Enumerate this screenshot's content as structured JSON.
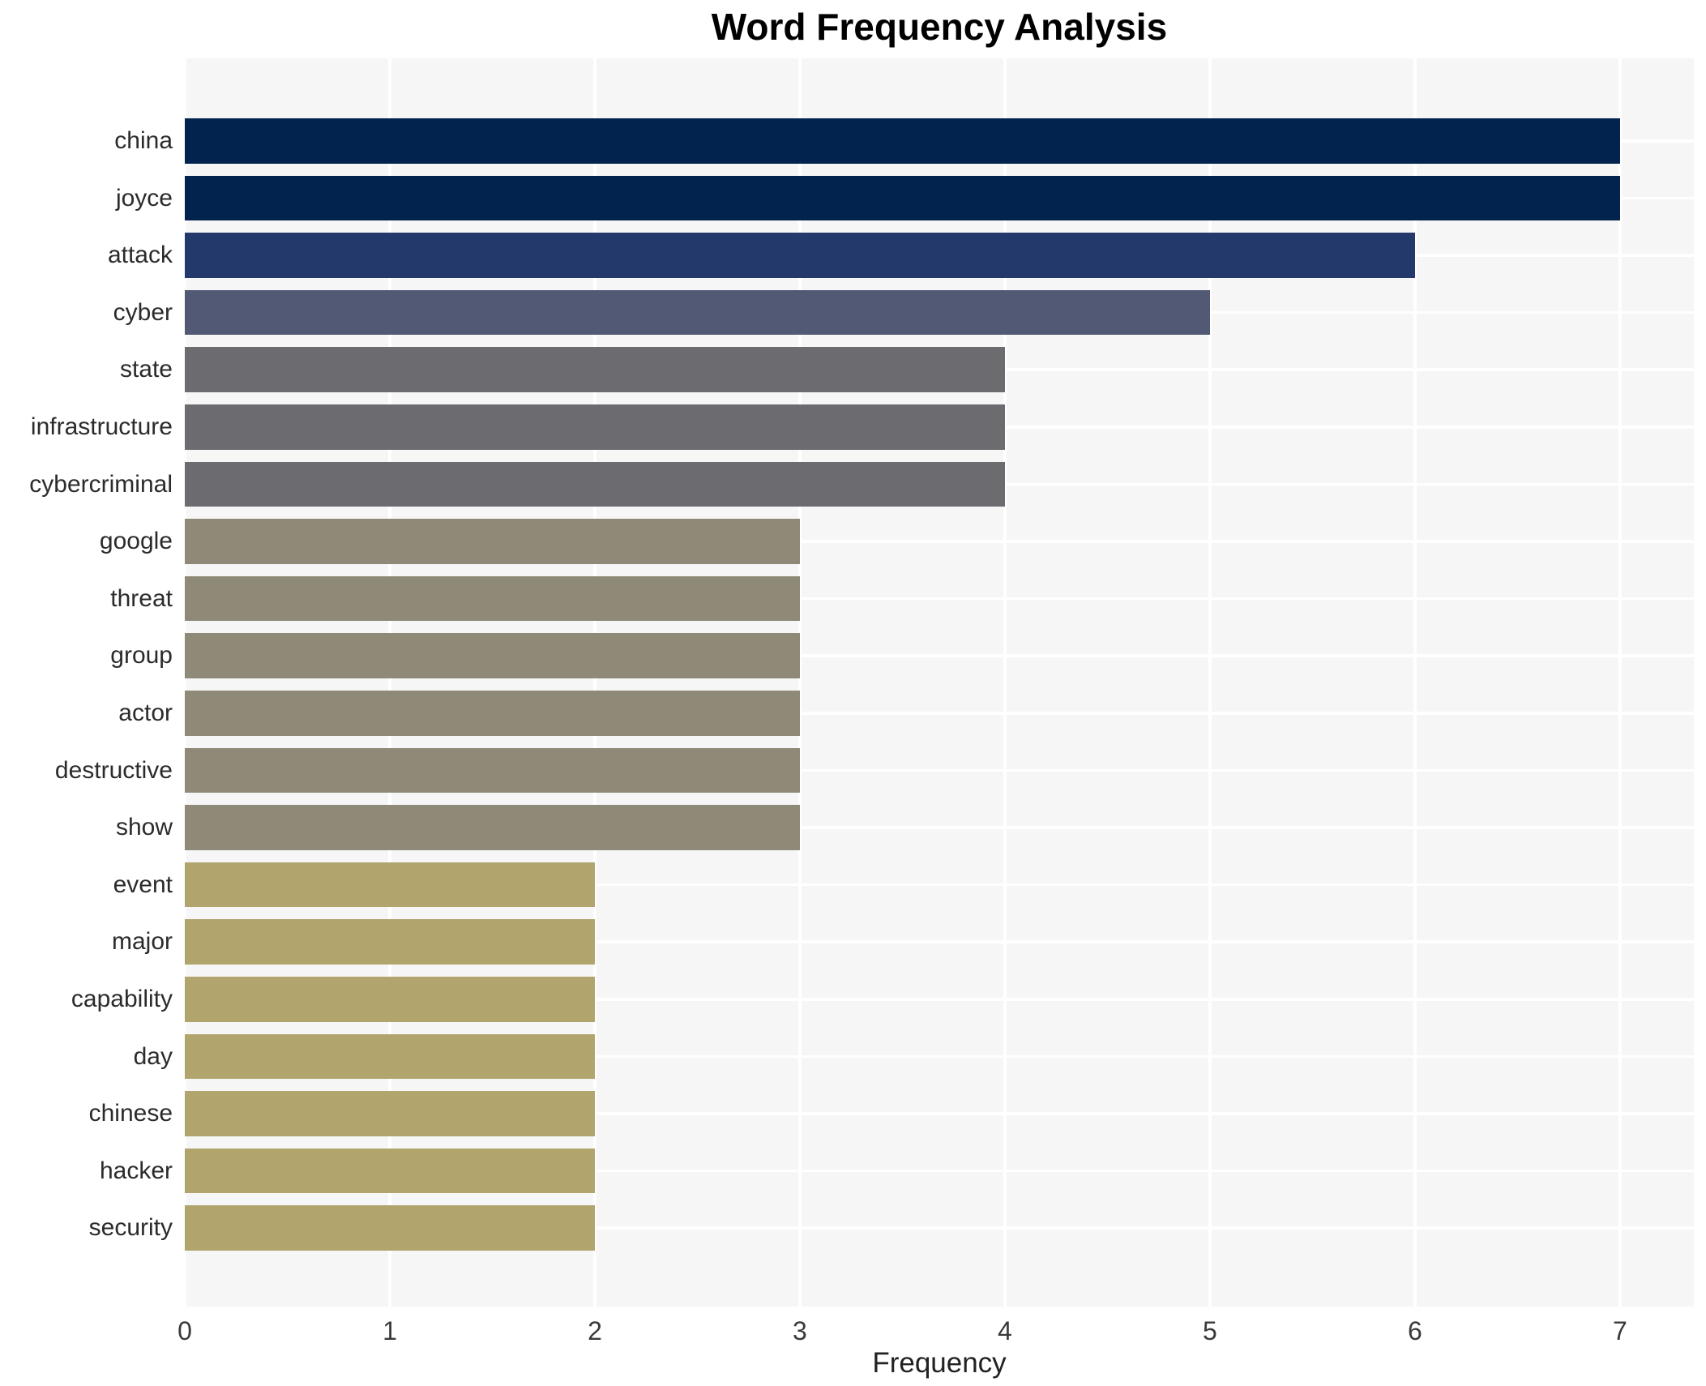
{
  "chart_data": {
    "type": "bar",
    "orientation": "horizontal",
    "title": "Word Frequency Analysis",
    "xlabel": "Frequency",
    "xlim": [
      0,
      7.36
    ],
    "xticks": [
      0,
      1,
      2,
      3,
      4,
      5,
      6,
      7
    ],
    "grid": true,
    "legend": "none",
    "plot_background": "#f6f6f7",
    "grid_color": "#ffffff",
    "title_color": "#000000",
    "label_color": "#2b2b2b",
    "categories": [
      "china",
      "joyce",
      "attack",
      "cyber",
      "state",
      "infrastructure",
      "cybercriminal",
      "google",
      "threat",
      "group",
      "actor",
      "destructive",
      "show",
      "event",
      "major",
      "capability",
      "day",
      "chinese",
      "hacker",
      "security"
    ],
    "values": [
      7,
      7,
      6,
      5,
      4,
      4,
      4,
      3,
      3,
      3,
      3,
      3,
      3,
      2,
      2,
      2,
      2,
      2,
      2,
      2
    ],
    "bar_colors": [
      "#02234e",
      "#02234e",
      "#24396b",
      "#525974",
      "#6c6c70",
      "#6c6c70",
      "#6c6c70",
      "#8f8a78",
      "#8f8a78",
      "#8f8a78",
      "#8f8a78",
      "#8f8a78",
      "#8f8a78",
      "#b1a56d",
      "#b1a56d",
      "#b1a56d",
      "#b1a56d",
      "#b1a56d",
      "#b1a56d",
      "#b1a56d"
    ],
    "value_color_map": {
      "7": "#02234e",
      "6": "#24396b",
      "5": "#525974",
      "4": "#6c6c70",
      "3": "#8f8a78",
      "2": "#b1a56d"
    }
  }
}
